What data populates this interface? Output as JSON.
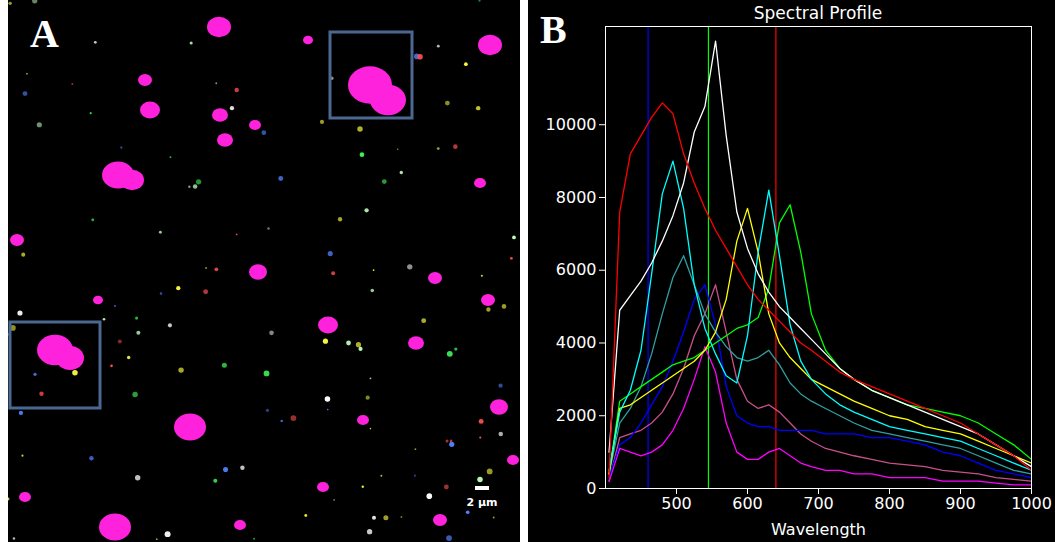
{
  "image": {
    "label": "A",
    "scale_bar": "2 µm"
  },
  "chart_data": {
    "label": "B",
    "type": "line",
    "title": "Spectral Profile",
    "xlabel": "Wavelength",
    "x": [
      405,
      420,
      435,
      450,
      465,
      480,
      495,
      510,
      525,
      540,
      555,
      570,
      585,
      600,
      615,
      630,
      645,
      660,
      675,
      690,
      710,
      730,
      750,
      775,
      800,
      825,
      850,
      875,
      900,
      925,
      950,
      975,
      1000
    ],
    "series": [
      {
        "color": "#c8508a",
        "values": [
          200,
          1400,
          1500,
          1600,
          1800,
          2100,
          2600,
          3300,
          4200,
          4800,
          5600,
          4300,
          3000,
          2400,
          2200,
          2300,
          2100,
          1800,
          1500,
          1300,
          1100,
          1000,
          900,
          800,
          700,
          650,
          600,
          500,
          450,
          400,
          300,
          250,
          200
        ]
      },
      {
        "color": "#ff00ff",
        "values": [
          200,
          1100,
          1000,
          900,
          1000,
          1200,
          1600,
          2200,
          3000,
          3900,
          3200,
          1800,
          1000,
          800,
          800,
          1000,
          1100,
          900,
          700,
          600,
          500,
          500,
          400,
          400,
          300,
          300,
          300,
          200,
          200,
          200,
          150,
          100,
          100
        ]
      },
      {
        "color": "#0000ff",
        "values": [
          300,
          1200,
          1400,
          1800,
          2300,
          2800,
          3500,
          4300,
          5200,
          5600,
          4500,
          2800,
          2000,
          1800,
          1700,
          1700,
          1600,
          1600,
          1600,
          1600,
          1500,
          1500,
          1500,
          1400,
          1400,
          1300,
          1200,
          1000,
          900,
          700,
          500,
          400,
          300
        ]
      },
      {
        "color": "#30a0a0",
        "values": [
          400,
          1800,
          2200,
          2800,
          3700,
          4800,
          5800,
          6400,
          5600,
          4800,
          4300,
          3900,
          3600,
          3500,
          3600,
          3800,
          3400,
          2900,
          2600,
          2400,
          2200,
          2000,
          1800,
          1600,
          1500,
          1400,
          1300,
          1200,
          1100,
          900,
          700,
          500,
          400
        ]
      },
      {
        "color": "#00ff00",
        "values": [
          400,
          2400,
          2600,
          2800,
          3000,
          3200,
          3400,
          3500,
          3600,
          3800,
          4000,
          4200,
          4400,
          4500,
          4700,
          5500,
          7300,
          7800,
          6500,
          4800,
          3800,
          3300,
          3000,
          2700,
          2500,
          2300,
          2200,
          2100,
          2000,
          1800,
          1500,
          1200,
          800
        ]
      },
      {
        "color": "#ffff00",
        "values": [
          400,
          2200,
          2300,
          2500,
          2700,
          2900,
          3100,
          3300,
          3500,
          3800,
          4300,
          5200,
          6800,
          7700,
          6500,
          4800,
          4000,
          3600,
          3300,
          3000,
          2800,
          2600,
          2400,
          2200,
          2000,
          1900,
          1700,
          1600,
          1500,
          1300,
          1100,
          900,
          700
        ]
      },
      {
        "color": "#00ffff",
        "values": [
          500,
          2100,
          2700,
          3800,
          5900,
          8100,
          9000,
          7700,
          5600,
          4400,
          3700,
          3100,
          2900,
          4200,
          6500,
          8200,
          6400,
          4500,
          3500,
          3000,
          2600,
          2300,
          2100,
          1900,
          1700,
          1600,
          1500,
          1400,
          1300,
          1100,
          900,
          700,
          500
        ]
      },
      {
        "color": "#ffffff",
        "values": [
          1000,
          4900,
          5300,
          5700,
          6200,
          6800,
          7500,
          8400,
          9800,
          10500,
          12300,
          9700,
          7600,
          6600,
          5900,
          5400,
          5000,
          4700,
          4400,
          4100,
          3700,
          3300,
          3000,
          2700,
          2500,
          2300,
          2100,
          1900,
          1700,
          1500,
          1200,
          900,
          600
        ]
      },
      {
        "color": "#ff0000",
        "values": [
          300,
          7600,
          9200,
          9700,
          10200,
          10600,
          10300,
          9200,
          8400,
          7700,
          7100,
          6600,
          6100,
          5600,
          5200,
          4900,
          4600,
          4300,
          4000,
          3800,
          3500,
          3200,
          3000,
          2800,
          2600,
          2400,
          2200,
          2000,
          1800,
          1500,
          1200,
          900,
          500
        ]
      }
    ],
    "reference_lines": [
      {
        "value": 460,
        "color": "#0000ff"
      },
      {
        "value": 545,
        "color": "#00ff00"
      },
      {
        "value": 640,
        "color": "#ff0000"
      }
    ],
    "xlim": [
      400,
      1000
    ],
    "ylim": [
      0,
      12700
    ],
    "xticks": [
      500,
      600,
      700,
      800,
      900,
      1000
    ],
    "yticks": [
      0,
      2000,
      4000,
      6000,
      8000,
      10000
    ],
    "grid": false
  }
}
